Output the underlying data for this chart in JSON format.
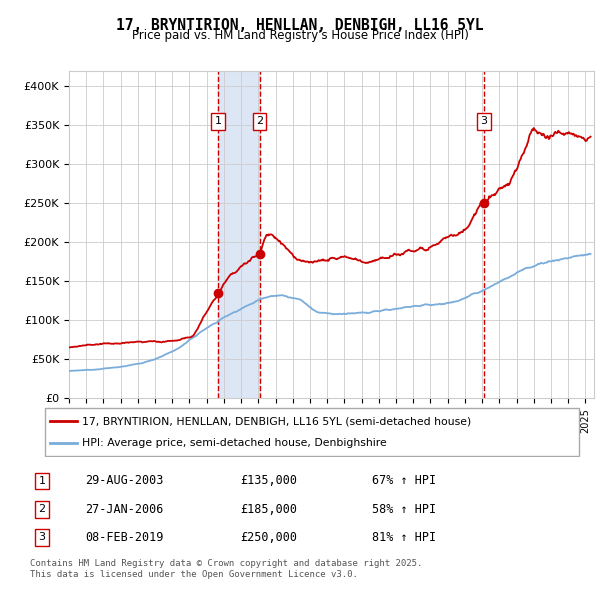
{
  "title": "17, BRYNTIRION, HENLLAN, DENBIGH, LL16 5YL",
  "subtitle": "Price paid vs. HM Land Registry's House Price Index (HPI)",
  "legend_line1": "17, BRYNTIRION, HENLLAN, DENBIGH, LL16 5YL (semi-detached house)",
  "legend_line2": "HPI: Average price, semi-detached house, Denbighshire",
  "footnote": "Contains HM Land Registry data © Crown copyright and database right 2025.\nThis data is licensed under the Open Government Licence v3.0.",
  "transactions": [
    {
      "num": 1,
      "date": "29-AUG-2003",
      "price": 135000,
      "pct": "67%",
      "dir": "↑"
    },
    {
      "num": 2,
      "date": "27-JAN-2006",
      "price": 185000,
      "pct": "58%",
      "dir": "↑"
    },
    {
      "num": 3,
      "date": "08-FEB-2019",
      "price": 250000,
      "pct": "81%",
      "dir": "↑"
    }
  ],
  "sale_dates_decimal": [
    2003.66,
    2006.07,
    2019.1
  ],
  "sale_prices": [
    135000,
    185000,
    250000
  ],
  "vline_color": "#cc0000",
  "highlight_color": "#dce6f5",
  "red_line_color": "#cc0000",
  "blue_line_color": "#7aaddb",
  "ylim": [
    0,
    420000
  ],
  "yticks": [
    0,
    50000,
    100000,
    150000,
    200000,
    250000,
    300000,
    350000,
    400000
  ],
  "xmin": 1995.0,
  "xmax": 2025.5
}
